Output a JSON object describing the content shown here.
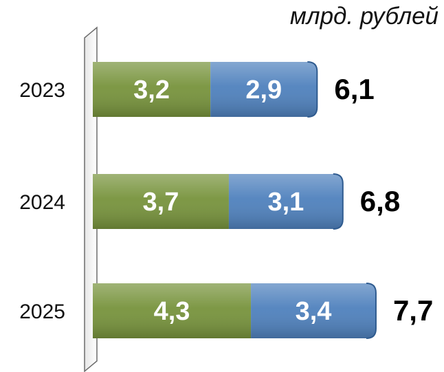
{
  "unit_label": "млрд. рублей",
  "chart_data": {
    "type": "bar",
    "orientation": "horizontal",
    "stacked": true,
    "categories": [
      "2023",
      "2024",
      "2025"
    ],
    "series": [
      {
        "values": [
          3.2,
          3.7,
          4.3
        ],
        "labels": [
          "3,2",
          "3,7",
          "4,3"
        ],
        "color": "#77933C"
      },
      {
        "values": [
          2.9,
          3.1,
          3.4
        ],
        "labels": [
          "2,9",
          "3,1",
          "3,4"
        ],
        "color": "#4F81BD"
      }
    ],
    "totals": [
      6.1,
      6.8,
      7.7
    ],
    "total_labels": [
      "6,1",
      "6,8",
      "7,7"
    ],
    "grid": false,
    "legend": "none"
  }
}
